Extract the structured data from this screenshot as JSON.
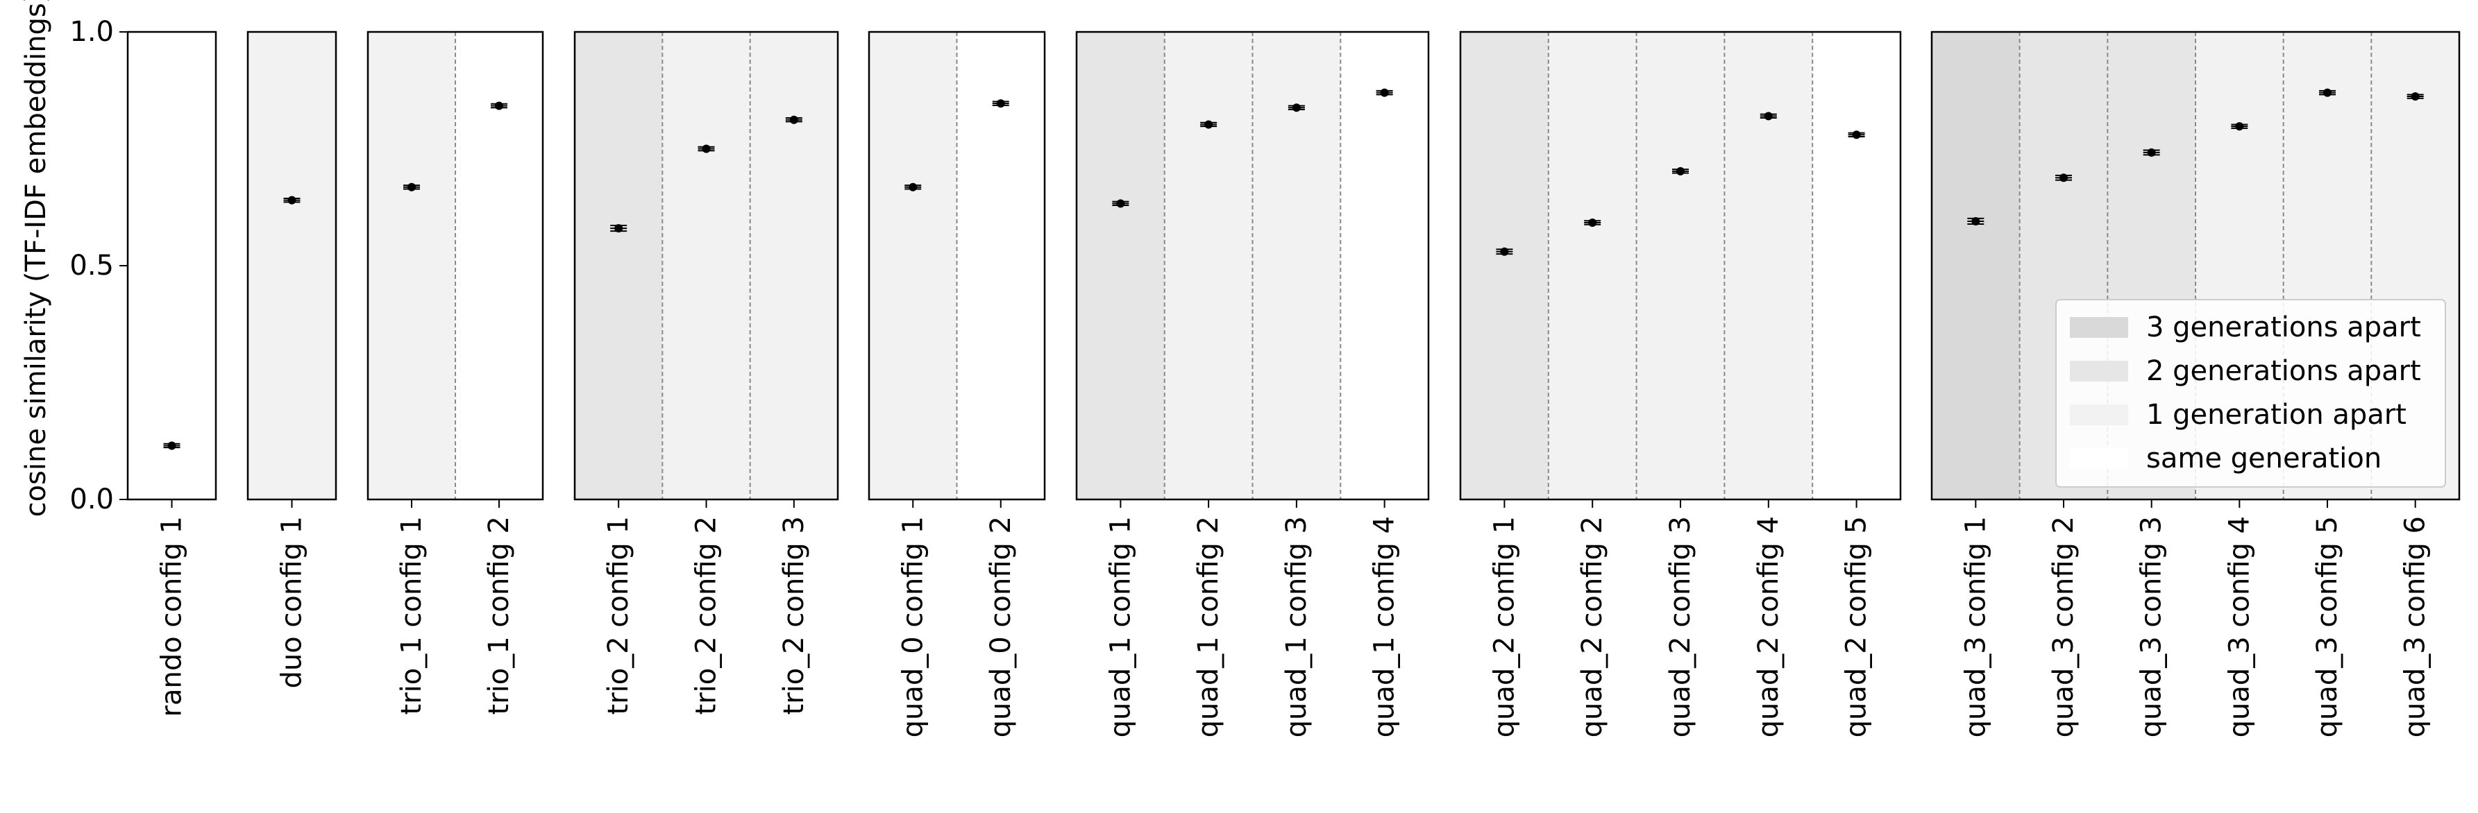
{
  "chart_data": {
    "type": "scatter",
    "ylabel": "cosine similarity (TF-IDF embeddings)",
    "ylim": [
      0.0,
      1.0
    ],
    "yticks": [
      0.0,
      0.5,
      1.0
    ],
    "ytick_labels": [
      "0.0",
      "0.5",
      "1.0"
    ],
    "grid": false,
    "legend_position": "lower-right",
    "legend": [
      {
        "label": "3 generations apart",
        "color": "#d9d9d9"
      },
      {
        "label": "2 generations apart",
        "color": "#e6e6e6"
      },
      {
        "label": "1 generation apart",
        "color": "#f2f2f2"
      },
      {
        "label": "same generation",
        "color": "#ffffff"
      }
    ],
    "groups": [
      {
        "name": "rando",
        "points": [
          {
            "label": "rando config 1",
            "value": 0.115,
            "err": 0.004,
            "bg": "#ffffff"
          }
        ]
      },
      {
        "name": "duo",
        "points": [
          {
            "label": "duo config 1",
            "value": 0.64,
            "err": 0.004,
            "bg": "#f2f2f2"
          }
        ]
      },
      {
        "name": "trio_1",
        "points": [
          {
            "label": "trio_1 config 1",
            "value": 0.668,
            "err": 0.004,
            "bg": "#f2f2f2"
          },
          {
            "label": "trio_1 config 2",
            "value": 0.842,
            "err": 0.004,
            "bg": "#ffffff"
          }
        ]
      },
      {
        "name": "trio_2",
        "points": [
          {
            "label": "trio_2 config 1",
            "value": 0.58,
            "err": 0.006,
            "bg": "#e6e6e6"
          },
          {
            "label": "trio_2 config 2",
            "value": 0.75,
            "err": 0.004,
            "bg": "#f2f2f2"
          },
          {
            "label": "trio_2 config 3",
            "value": 0.812,
            "err": 0.004,
            "bg": "#f2f2f2"
          }
        ]
      },
      {
        "name": "quad_0",
        "points": [
          {
            "label": "quad_0 config 1",
            "value": 0.668,
            "err": 0.004,
            "bg": "#f2f2f2"
          },
          {
            "label": "quad_0 config 2",
            "value": 0.847,
            "err": 0.004,
            "bg": "#ffffff"
          }
        ]
      },
      {
        "name": "quad_1",
        "points": [
          {
            "label": "quad_1 config 1",
            "value": 0.633,
            "err": 0.004,
            "bg": "#e6e6e6"
          },
          {
            "label": "quad_1 config 2",
            "value": 0.802,
            "err": 0.004,
            "bg": "#f2f2f2"
          },
          {
            "label": "quad_1 config 3",
            "value": 0.838,
            "err": 0.004,
            "bg": "#f2f2f2"
          },
          {
            "label": "quad_1 config 4",
            "value": 0.87,
            "err": 0.004,
            "bg": "#ffffff"
          }
        ]
      },
      {
        "name": "quad_2",
        "points": [
          {
            "label": "quad_2 config 1",
            "value": 0.53,
            "err": 0.005,
            "bg": "#e6e6e6"
          },
          {
            "label": "quad_2 config 2",
            "value": 0.592,
            "err": 0.004,
            "bg": "#f2f2f2"
          },
          {
            "label": "quad_2 config 3",
            "value": 0.702,
            "err": 0.004,
            "bg": "#f2f2f2"
          },
          {
            "label": "quad_2 config 4",
            "value": 0.82,
            "err": 0.004,
            "bg": "#f2f2f2"
          },
          {
            "label": "quad_2 config 5",
            "value": 0.78,
            "err": 0.004,
            "bg": "#ffffff"
          }
        ]
      },
      {
        "name": "quad_3",
        "points": [
          {
            "label": "quad_3 config 1",
            "value": 0.595,
            "err": 0.006,
            "bg": "#d9d9d9"
          },
          {
            "label": "quad_3 config 2",
            "value": 0.688,
            "err": 0.005,
            "bg": "#e6e6e6"
          },
          {
            "label": "quad_3 config 3",
            "value": 0.742,
            "err": 0.005,
            "bg": "#e6e6e6"
          },
          {
            "label": "quad_3 config 4",
            "value": 0.798,
            "err": 0.004,
            "bg": "#f2f2f2"
          },
          {
            "label": "quad_3 config 5",
            "value": 0.87,
            "err": 0.004,
            "bg": "#f2f2f2"
          },
          {
            "label": "quad_3 config 6",
            "value": 0.862,
            "err": 0.004,
            "bg": "#f2f2f2"
          }
        ]
      }
    ]
  }
}
